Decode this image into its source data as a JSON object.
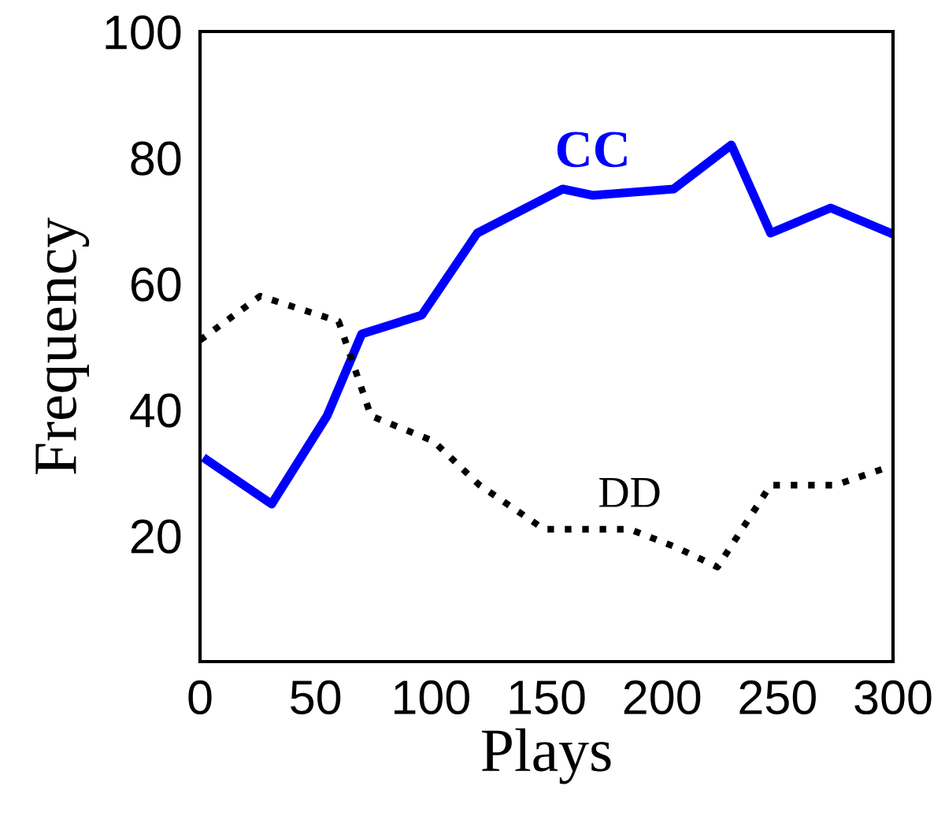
{
  "chart_data": {
    "type": "line",
    "xlabel": "Plays",
    "ylabel": "Frequency",
    "xlim": [
      0,
      300
    ],
    "ylim": [
      0,
      100
    ],
    "xticks": [
      0,
      50,
      100,
      150,
      200,
      250,
      300
    ],
    "yticks": [
      20,
      40,
      60,
      80,
      100
    ],
    "grid": false,
    "legend": false,
    "marker": "none",
    "series": [
      {
        "name": "CC",
        "color": "#0000ff",
        "line_style": "solid",
        "x": [
          3,
          31,
          55,
          70,
          96,
          120,
          157,
          170,
          205,
          230,
          247,
          273,
          299
        ],
        "values": [
          32,
          25,
          39,
          52,
          55,
          68,
          75,
          74,
          75,
          82,
          68,
          72,
          68
        ]
      },
      {
        "name": "DD",
        "color": "#000000",
        "line_style": "dotted",
        "x": [
          0,
          26,
          60,
          74,
          101,
          121,
          149,
          186,
          207,
          224,
          247,
          275,
          299
        ],
        "values": [
          51,
          58,
          54,
          39,
          35,
          28,
          21,
          21,
          18,
          15,
          28,
          28,
          31
        ]
      }
    ]
  }
}
